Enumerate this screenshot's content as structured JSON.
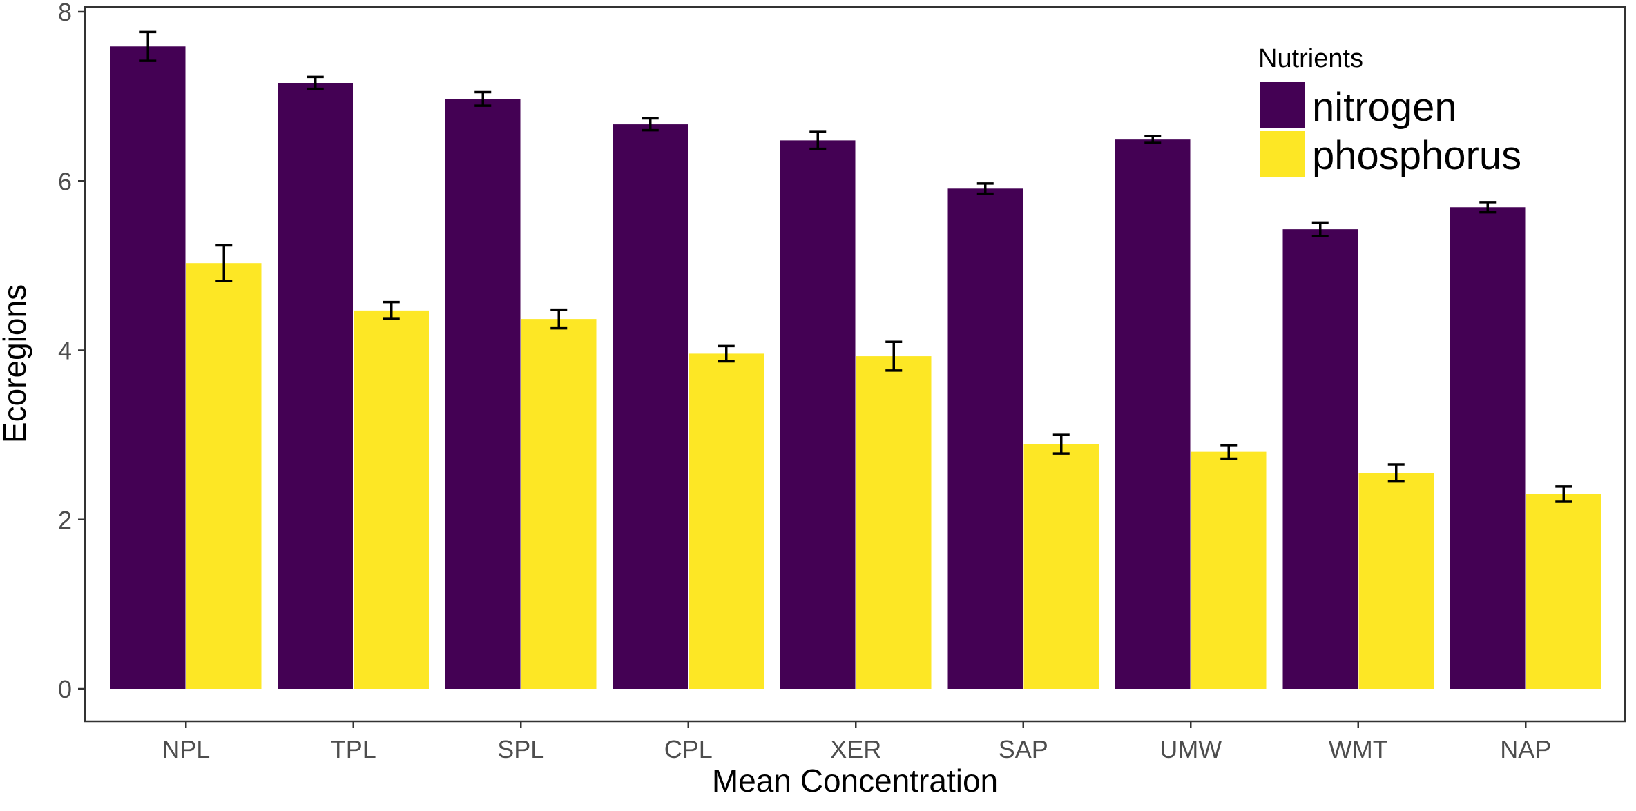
{
  "chart_data": {
    "type": "bar",
    "title": "",
    "xlabel": "Mean Concentration",
    "ylabel": "Ecoregions",
    "ylim": [
      0,
      8
    ],
    "yticks": [
      "0",
      "2",
      "4",
      "6",
      "8"
    ],
    "grid": false,
    "legend": {
      "title": "Nutrients",
      "placement": "top-right"
    },
    "categories": [
      "NPL",
      "TPL",
      "SPL",
      "CPL",
      "XER",
      "SAP",
      "UMW",
      "WMT",
      "NAP"
    ],
    "series": [
      {
        "name": "nitrogen",
        "color": "#440154",
        "values": [
          7.59,
          7.16,
          6.97,
          6.67,
          6.48,
          5.91,
          6.49,
          5.43,
          5.69
        ],
        "error": [
          0.17,
          0.07,
          0.08,
          0.07,
          0.1,
          0.06,
          0.04,
          0.08,
          0.06
        ]
      },
      {
        "name": "phosphorus",
        "color": "#FDE725",
        "values": [
          5.03,
          4.47,
          4.37,
          3.96,
          3.93,
          2.89,
          2.8,
          2.55,
          2.3
        ],
        "error": [
          0.21,
          0.1,
          0.11,
          0.09,
          0.17,
          0.11,
          0.08,
          0.1,
          0.09
        ]
      }
    ]
  }
}
